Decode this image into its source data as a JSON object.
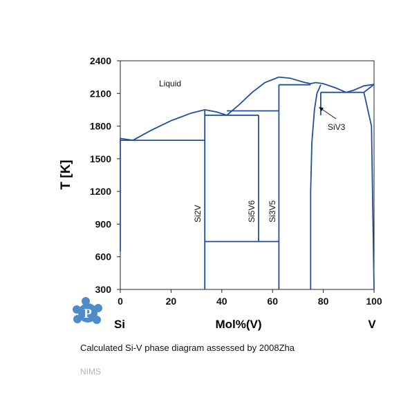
{
  "chart_data": {
    "type": "phase-diagram",
    "x_axis": {
      "title": "Mol%(V)",
      "range": [
        0,
        100
      ],
      "ticks": [
        "0",
        "20",
        "40",
        "60",
        "80",
        "100"
      ],
      "left_end_label": "Si",
      "right_end_label": "V"
    },
    "y_axis": {
      "title": "T [K]",
      "range": [
        300,
        2400
      ],
      "ticks": [
        "300",
        "600",
        "900",
        "1200",
        "1500",
        "1800",
        "2100",
        "2400"
      ]
    },
    "region_labels": {
      "liquid": "Liquid",
      "si2v": "Si2V",
      "si5v6": "Si5V6",
      "si3v5": "Si3V5",
      "siv3": "SiV3"
    },
    "phase_lines": [
      {
        "name": "liquidus-si-eutectic",
        "points": [
          [
            0,
            1687
          ],
          [
            2,
            1680
          ],
          [
            5,
            1670
          ]
        ]
      },
      {
        "name": "liquidus-si2v-left",
        "points": [
          [
            5,
            1670
          ],
          [
            12,
            1760
          ],
          [
            20,
            1850
          ],
          [
            28,
            1920
          ],
          [
            33.3,
            1950
          ]
        ]
      },
      {
        "name": "liquidus-si2v-right",
        "points": [
          [
            33.3,
            1950
          ],
          [
            38,
            1930
          ],
          [
            42,
            1900
          ]
        ]
      },
      {
        "name": "liquidus-si3v5-left",
        "points": [
          [
            42,
            1900
          ],
          [
            47,
            2000
          ],
          [
            52,
            2110
          ],
          [
            57,
            2200
          ],
          [
            62.5,
            2250
          ]
        ]
      },
      {
        "name": "liquidus-si3v5-right",
        "points": [
          [
            62.5,
            2250
          ],
          [
            67,
            2240
          ],
          [
            72,
            2205
          ],
          [
            75,
            2190
          ]
        ]
      },
      {
        "name": "liquidus-siv3-left",
        "points": [
          [
            75,
            2190
          ],
          [
            77,
            2200
          ],
          [
            80,
            2190
          ]
        ]
      },
      {
        "name": "liquidus-siv3-right",
        "points": [
          [
            80,
            2190
          ],
          [
            85,
            2150
          ],
          [
            89,
            2110
          ]
        ]
      },
      {
        "name": "liquidus-v",
        "points": [
          [
            89,
            2110
          ],
          [
            92,
            2130
          ],
          [
            96,
            2170
          ],
          [
            100,
            2183
          ]
        ]
      },
      {
        "name": "eutectic-si-si2v",
        "points": [
          [
            0,
            1670
          ],
          [
            33.3,
            1670
          ]
        ]
      },
      {
        "name": "si-solid-left",
        "points": [
          [
            0,
            650
          ],
          [
            0,
            1687
          ]
        ]
      },
      {
        "name": "si2v-line",
        "points": [
          [
            33.3,
            300
          ],
          [
            33.3,
            1950
          ]
        ]
      },
      {
        "name": "peritectic-si5v6",
        "points": [
          [
            33.3,
            1900
          ],
          [
            54.5,
            1900
          ]
        ]
      },
      {
        "name": "si5v6-line",
        "points": [
          [
            54.5,
            740
          ],
          [
            54.5,
            1900
          ]
        ]
      },
      {
        "name": "eutectic-si2v-si3v5",
        "points": [
          [
            42,
            1940
          ],
          [
            62.5,
            1940
          ]
        ]
      },
      {
        "name": "si5v6-decomposition",
        "points": [
          [
            33.3,
            740
          ],
          [
            62.5,
            740
          ]
        ]
      },
      {
        "name": "si3v5-line",
        "points": [
          [
            62.5,
            300
          ],
          [
            62.5,
            2180
          ]
        ]
      },
      {
        "name": "eutectic-si3v5-siv3",
        "points": [
          [
            62.5,
            2180
          ],
          [
            75,
            2180
          ]
        ]
      },
      {
        "name": "siv3-left-boundary",
        "points": [
          [
            75,
            300
          ],
          [
            75,
            1200
          ],
          [
            75.5,
            1650
          ],
          [
            76.5,
            1950
          ],
          [
            77.5,
            2100
          ],
          [
            79,
            2180
          ]
        ]
      },
      {
        "name": "eutectic-siv3-v",
        "points": [
          [
            79,
            2110
          ],
          [
            96,
            2110
          ]
        ]
      },
      {
        "name": "siv3-right-boundary",
        "points": [
          [
            79,
            2110
          ],
          [
            79,
            1900
          ]
        ]
      },
      {
        "name": "v-solvus",
        "points": [
          [
            96,
            2110
          ],
          [
            99,
            1800
          ],
          [
            100,
            300
          ]
        ]
      },
      {
        "name": "v-liquidus-edge",
        "points": [
          [
            96,
            2110
          ],
          [
            100,
            2183
          ]
        ]
      }
    ]
  },
  "logo": {
    "letter": "P"
  },
  "caption": "Calculated Si-V phase diagram assessed by 2008Zha",
  "source": "NIMS"
}
